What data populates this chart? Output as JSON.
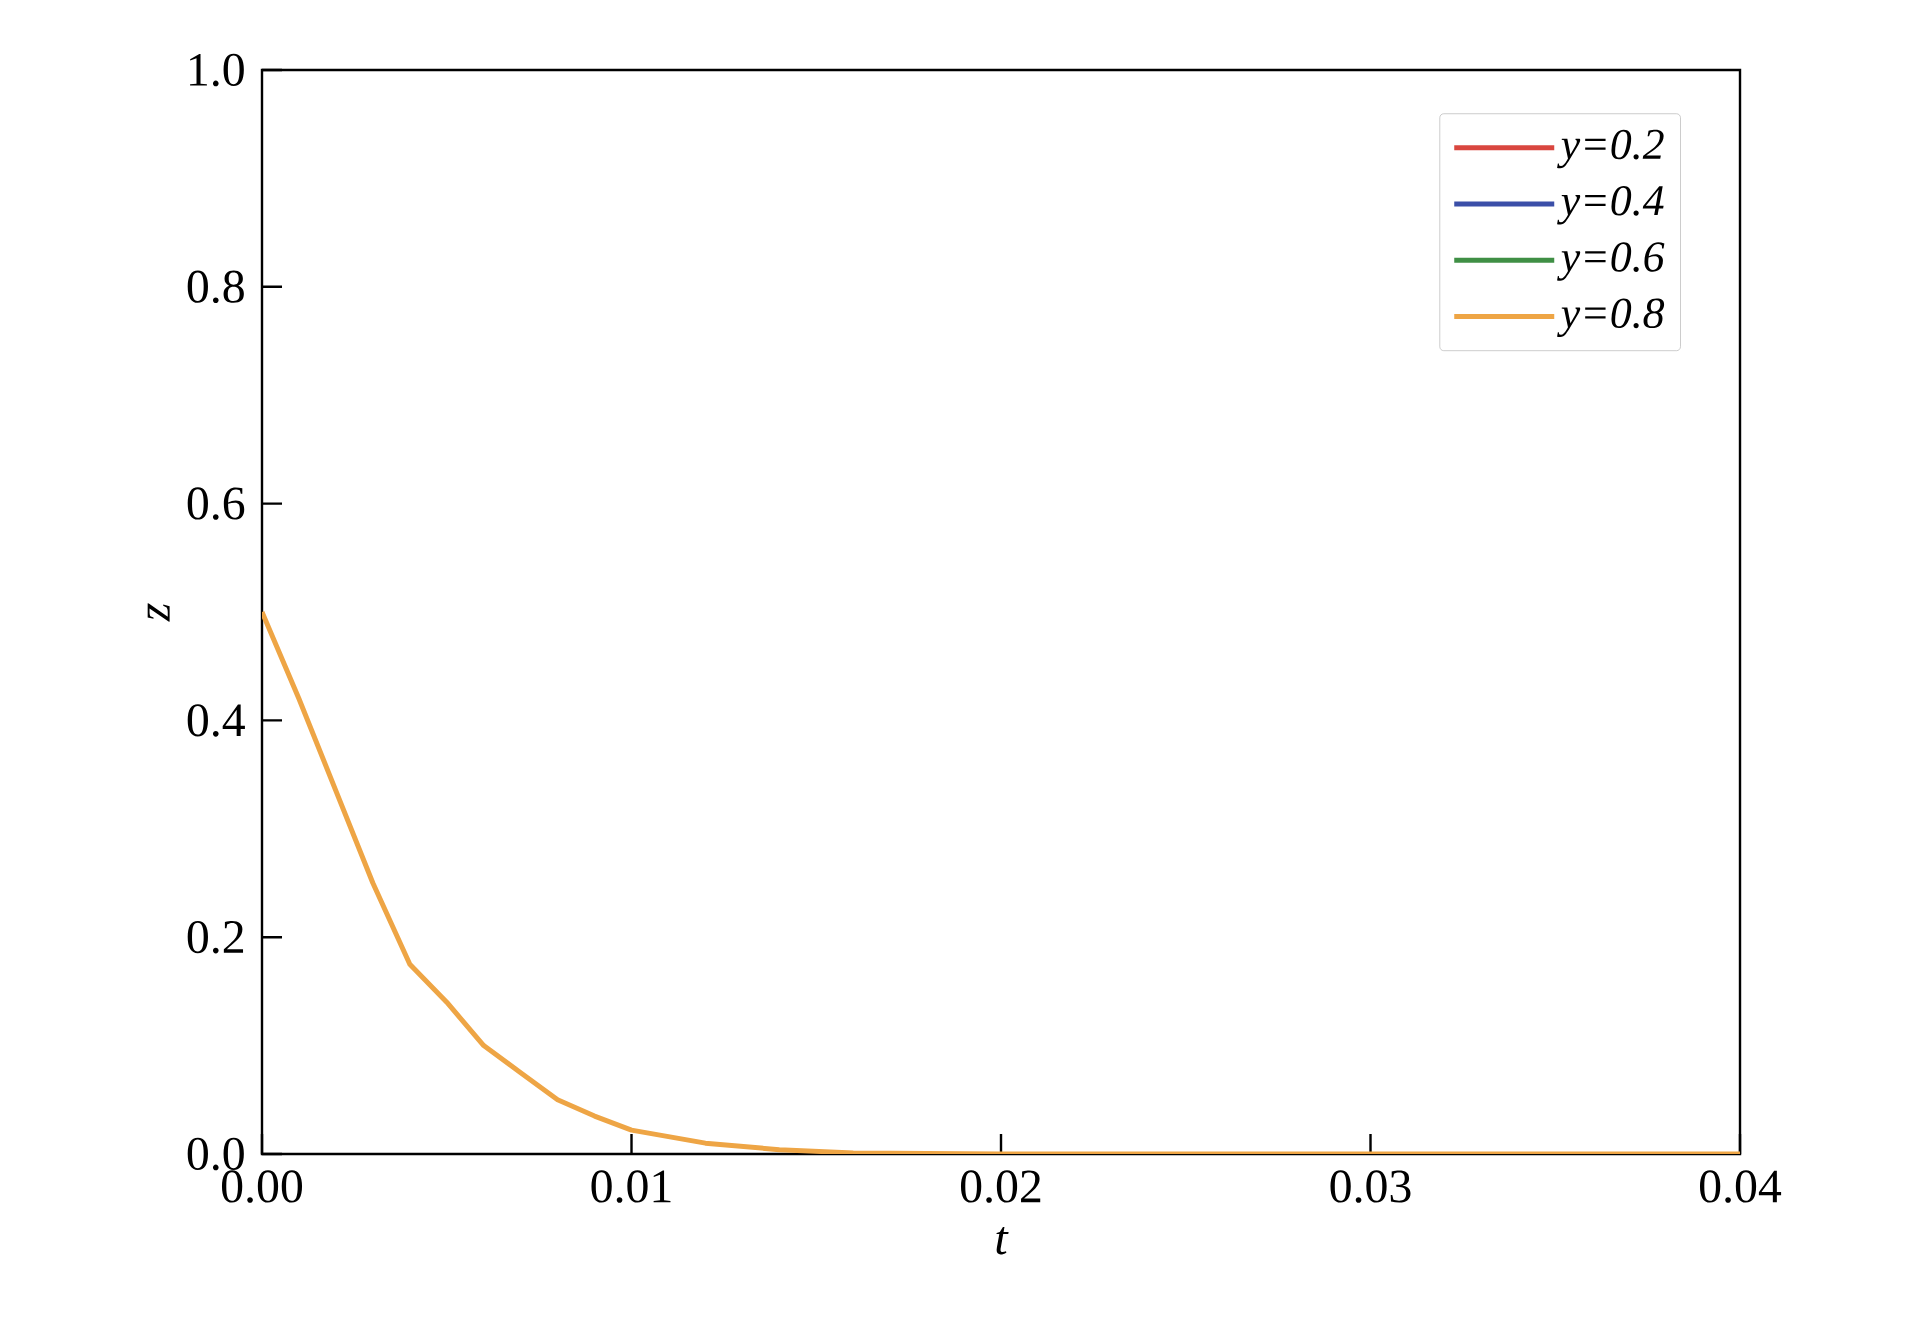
{
  "chart_data": {
    "type": "line",
    "xlabel": "t",
    "ylabel": "z",
    "x": [
      0,
      0.001,
      0.002,
      0.003,
      0.004,
      0.005,
      0.006,
      0.007,
      0.008,
      0.009,
      0.01,
      0.012,
      0.014,
      0.016,
      0.02,
      0.03,
      0.04
    ],
    "series": [
      {
        "name": "y=0.2",
        "color": "#d9463f",
        "values": [
          null,
          null,
          null,
          null,
          null,
          null,
          null,
          null,
          null,
          null,
          null,
          null,
          null,
          null,
          null,
          null,
          null
        ]
      },
      {
        "name": "y=0.4",
        "color": "#3b4fa8",
        "values": [
          null,
          null,
          null,
          null,
          null,
          null,
          null,
          null,
          null,
          null,
          null,
          null,
          null,
          null,
          null,
          null,
          null
        ]
      },
      {
        "name": "y=0.6",
        "color": "#3f8f45",
        "values": [
          null,
          null,
          null,
          null,
          null,
          null,
          null,
          null,
          null,
          null,
          null,
          null,
          null,
          null,
          null,
          null,
          null
        ]
      },
      {
        "name": "y=0.8",
        "color": "#eea545",
        "values": [
          0.5,
          0.42,
          0.335,
          0.25,
          0.175,
          0.14,
          0.1,
          0.075,
          0.05,
          0.035,
          0.022,
          0.01,
          0.004,
          0.001,
          0,
          0,
          0
        ]
      }
    ],
    "xlim": [
      0,
      0.04
    ],
    "ylim": [
      0,
      1.0
    ],
    "xticks": [
      {
        "value": 0,
        "label": "0.00"
      },
      0.01,
      0.02,
      0.03,
      0.04
    ],
    "yticks": [
      {
        "value": 0,
        "label": "0.0"
      },
      0.2,
      0.4,
      0.6,
      0.8,
      {
        "value": 1,
        "label": "1.0"
      }
    ],
    "legend": "top right",
    "grid": false,
    "marker": "none",
    "line_style": "solid"
  }
}
